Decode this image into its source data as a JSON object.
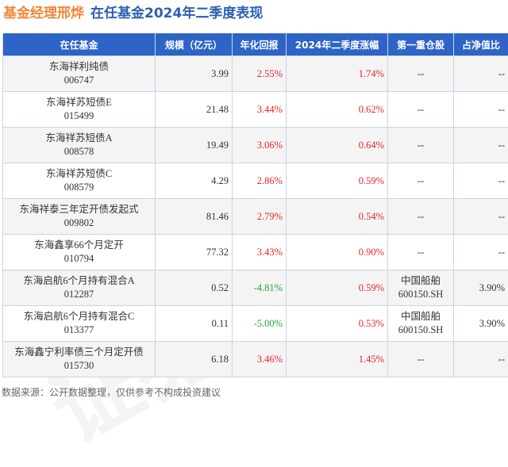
{
  "header": {
    "title_part1": "基金经理邢烨",
    "title_part2": "在任基金2024年二季度表现"
  },
  "table": {
    "columns": [
      "在任基金",
      "规模（亿元）",
      "年化回报",
      "2024年二季度涨幅",
      "第一重仓股",
      "占净值比"
    ],
    "rows": [
      {
        "name": "东海祥利纯债",
        "code": "006747",
        "scale": "3.99",
        "annual_return": "2.55%",
        "annual_color": "red",
        "q2_change": "1.74%",
        "top_holding_name": "--",
        "top_holding_code": "",
        "weight": "--"
      },
      {
        "name": "东海祥苏短债E",
        "code": "015499",
        "scale": "21.48",
        "annual_return": "3.44%",
        "annual_color": "red",
        "q2_change": "0.62%",
        "top_holding_name": "--",
        "top_holding_code": "",
        "weight": "--"
      },
      {
        "name": "东海祥苏短债A",
        "code": "008578",
        "scale": "19.49",
        "annual_return": "3.06%",
        "annual_color": "red",
        "q2_change": "0.64%",
        "top_holding_name": "--",
        "top_holding_code": "",
        "weight": "--"
      },
      {
        "name": "东海祥苏短债C",
        "code": "008579",
        "scale": "4.29",
        "annual_return": "2.86%",
        "annual_color": "red",
        "q2_change": "0.59%",
        "top_holding_name": "--",
        "top_holding_code": "",
        "weight": "--"
      },
      {
        "name": "东海祥泰三年定开债发起式",
        "code": "009802",
        "scale": "81.46",
        "annual_return": "2.79%",
        "annual_color": "red",
        "q2_change": "0.54%",
        "top_holding_name": "--",
        "top_holding_code": "",
        "weight": "--"
      },
      {
        "name": "东海鑫享66个月定开",
        "code": "010794",
        "scale": "77.32",
        "annual_return": "3.43%",
        "annual_color": "red",
        "q2_change": "0.90%",
        "top_holding_name": "--",
        "top_holding_code": "",
        "weight": "--"
      },
      {
        "name": "东海启航6个月持有混合A",
        "code": "012287",
        "scale": "0.52",
        "annual_return": "-4.81%",
        "annual_color": "green",
        "q2_change": "0.59%",
        "top_holding_name": "中国船舶",
        "top_holding_code": "600150.SH",
        "weight": "3.90%"
      },
      {
        "name": "东海启航6个月持有混合C",
        "code": "013377",
        "scale": "0.11",
        "annual_return": "-5.00%",
        "annual_color": "green",
        "q2_change": "0.53%",
        "top_holding_name": "中国船舶",
        "top_holding_code": "600150.SH",
        "weight": "3.90%"
      },
      {
        "name": "东海鑫宁利率债三个月定开债",
        "code": "015730",
        "scale": "6.18",
        "annual_return": "3.46%",
        "annual_color": "red",
        "q2_change": "1.45%",
        "top_holding_name": "--",
        "top_holding_code": "",
        "weight": "--"
      }
    ]
  },
  "footer": {
    "source": "数据来源：公开数据整理，仅供参考不构成投资建议"
  },
  "colors": {
    "title_orange": "#f0883a",
    "title_blue": "#2b5fb4",
    "header_bg": "#2e64c6",
    "positive_red": "#e8242b",
    "negative_green": "#23a343"
  }
}
